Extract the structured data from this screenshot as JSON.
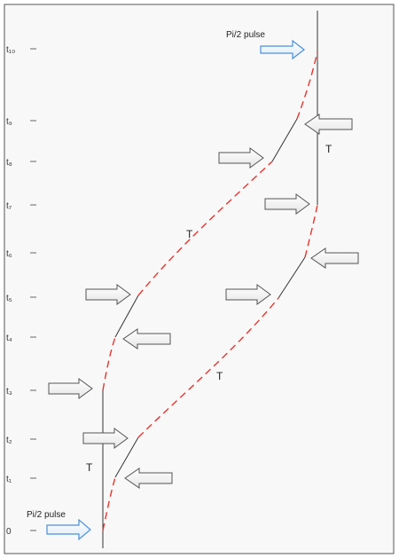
{
  "time_labels": [
    "t₁₀",
    "t₉",
    "t₈",
    "t₇",
    "t₆",
    "t₅",
    "t₄",
    "t₃",
    "t₂",
    "t₁",
    "0"
  ],
  "annotations": {
    "top_pulse": "Pi/2 pulse",
    "bottom_pulse": "Pi/2 pulse",
    "t_upper_right": "T",
    "t_upper_middle": "T",
    "t_lower_middle": "T",
    "t_lower_left": "T"
  },
  "colors": {
    "frame_bg": "#f8f8f8",
    "frame_border": "#555555",
    "path_dashed": "#e8332c",
    "path_solid": "#333333",
    "pulse_arrow": "#4a90d9",
    "kick_arrow": "#555555"
  }
}
